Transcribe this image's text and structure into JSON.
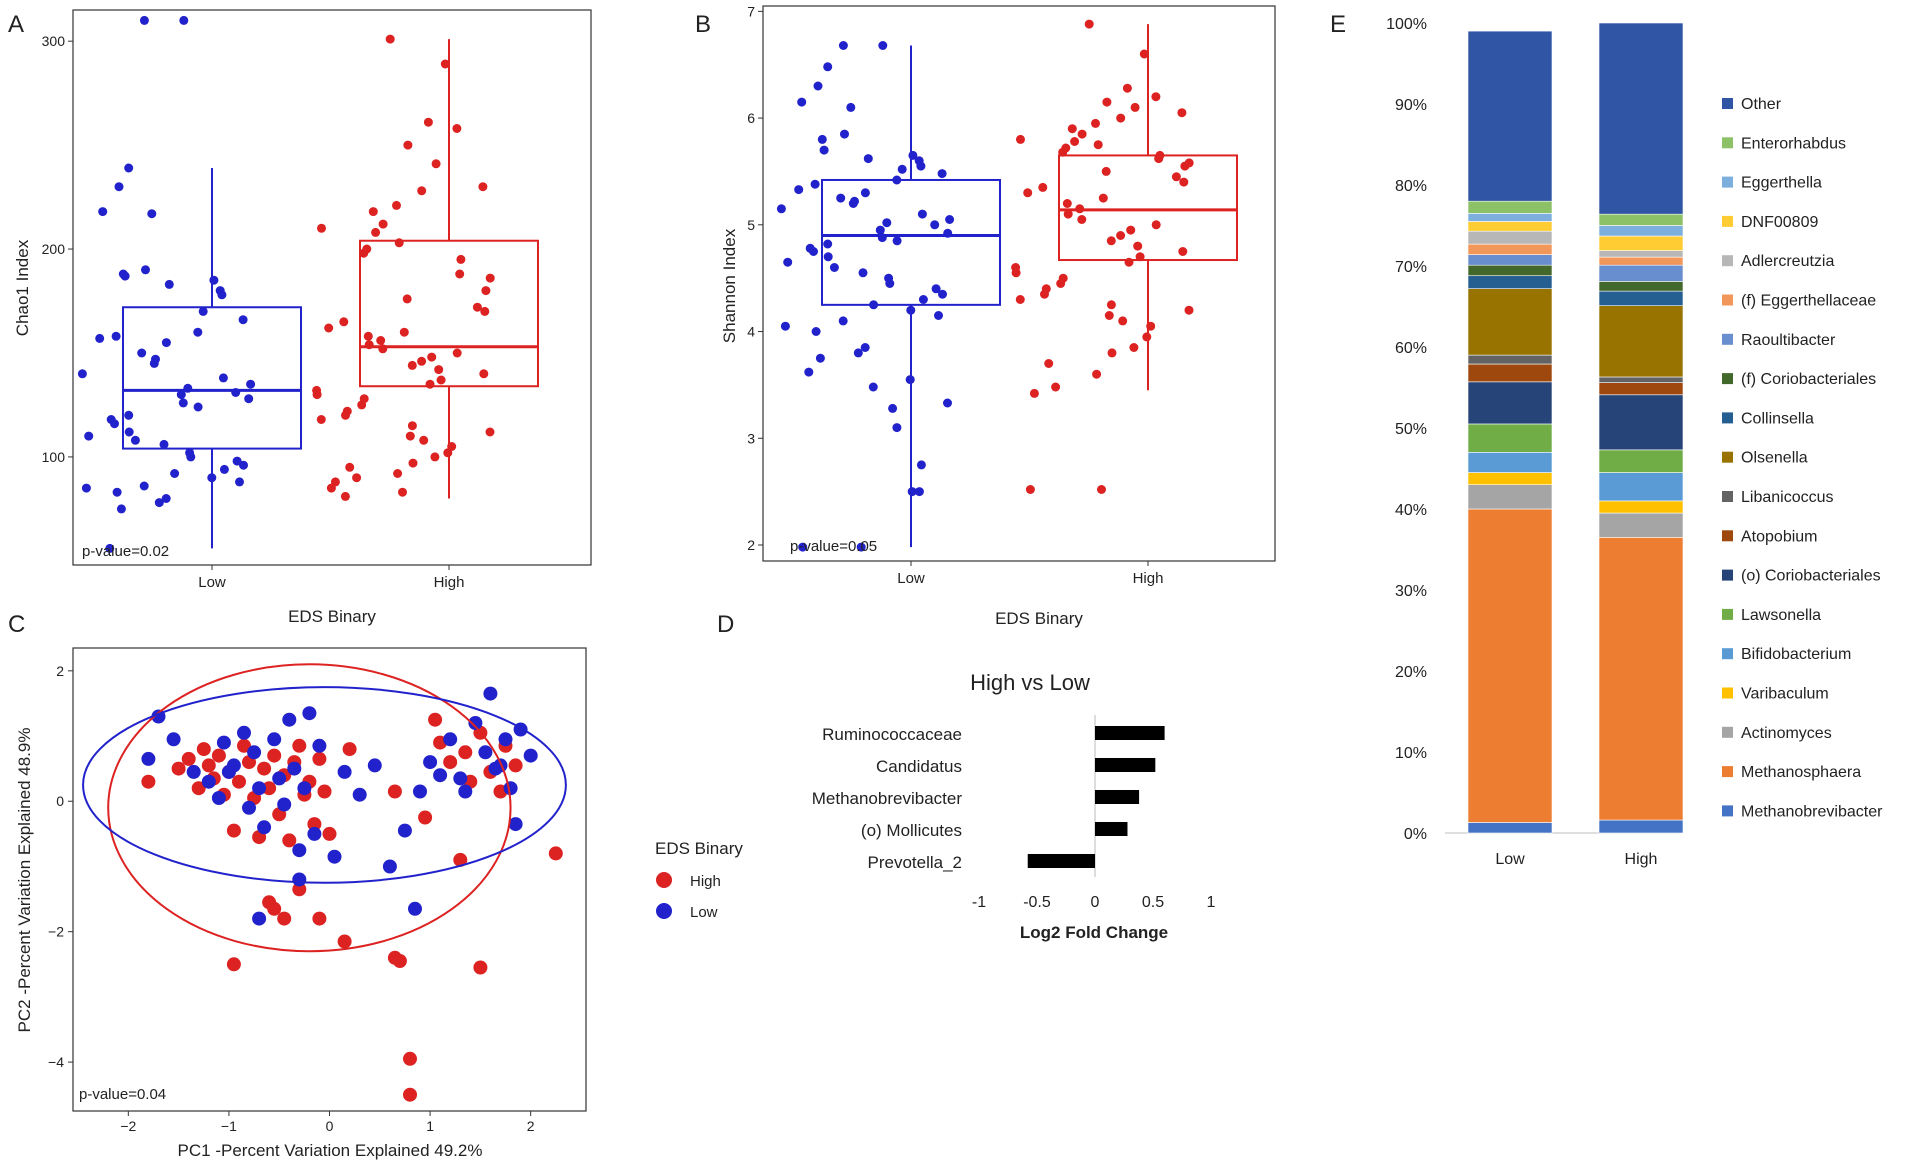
{
  "colors": {
    "low": "#2222cc",
    "high": "#dd2222",
    "frame": "#333333",
    "bar": "#000000"
  },
  "panels": {
    "A": "A",
    "B": "B",
    "C": "C",
    "D": "D",
    "E": "E"
  },
  "chart_data": [
    {
      "id": "A",
      "type": "scatter",
      "subtype": "boxplot_with_jitter",
      "title": "",
      "xlabel": "EDS Binary",
      "ylabel": "Chao1 Index",
      "categories": [
        "Low",
        "High"
      ],
      "ylim": [
        48,
        315
      ],
      "yticks": [
        100,
        200,
        300
      ],
      "annotation": "p-value=0.02",
      "boxes": [
        {
          "name": "Low",
          "q1": 104,
          "median": 132,
          "q3": 172,
          "whisker_low": 56,
          "whisker_high": 239
        },
        {
          "name": "High",
          "q1": 134,
          "median": 153,
          "q3": 204,
          "whisker_low": 80,
          "whisker_high": 301
        }
      ],
      "points": {
        "Low": [
          310,
          310,
          239,
          230,
          218,
          217,
          190,
          188,
          187,
          185,
          183,
          180,
          178,
          170,
          166,
          160,
          158,
          157,
          155,
          150,
          147,
          145,
          140,
          138,
          135,
          133,
          131,
          130,
          128,
          126,
          124,
          120,
          118,
          116,
          112,
          110,
          108,
          106,
          102,
          100,
          98,
          96,
          94,
          92,
          90,
          88,
          86,
          85,
          83,
          80,
          78,
          75,
          56
        ],
        "High": [
          301,
          289,
          261,
          258,
          250,
          241,
          230,
          228,
          221,
          218,
          212,
          210,
          208,
          203,
          200,
          198,
          195,
          188,
          186,
          180,
          176,
          172,
          170,
          165,
          162,
          160,
          158,
          156,
          154,
          152,
          150,
          148,
          146,
          144,
          142,
          140,
          137,
          135,
          132,
          130,
          128,
          125,
          122,
          120,
          118,
          115,
          112,
          110,
          108,
          105,
          102,
          100,
          97,
          95,
          92,
          90,
          88,
          85,
          83,
          81
        ]
      }
    },
    {
      "id": "B",
      "type": "scatter",
      "subtype": "boxplot_with_jitter",
      "title": "",
      "xlabel": "EDS Binary",
      "ylabel": "Shannon Index",
      "categories": [
        "Low",
        "High"
      ],
      "ylim": [
        1.85,
        7.05
      ],
      "yticks": [
        2,
        3,
        4,
        5,
        6,
        7
      ],
      "annotation": "p-value=0.05",
      "boxes": [
        {
          "name": "Low",
          "q1": 4.25,
          "median": 4.9,
          "q3": 5.42,
          "whisker_low": 1.98,
          "whisker_high": 6.68
        },
        {
          "name": "High",
          "q1": 4.67,
          "median": 5.14,
          "q3": 5.65,
          "whisker_low": 3.45,
          "whisker_high": 6.88
        }
      ],
      "points": {
        "Low": [
          6.68,
          6.68,
          6.48,
          6.3,
          6.15,
          6.1,
          5.85,
          5.8,
          5.7,
          5.65,
          5.62,
          5.6,
          5.55,
          5.52,
          5.48,
          5.42,
          5.38,
          5.33,
          5.3,
          5.25,
          5.22,
          5.2,
          5.15,
          5.1,
          5.05,
          5.02,
          5.0,
          4.95,
          4.92,
          4.88,
          4.85,
          4.82,
          4.78,
          4.75,
          4.7,
          4.65,
          4.6,
          4.55,
          4.5,
          4.45,
          4.4,
          4.35,
          4.3,
          4.25,
          4.2,
          4.15,
          4.1,
          4.05,
          4.0,
          3.85,
          3.8,
          3.75,
          3.62,
          3.55,
          3.48,
          3.33,
          3.28,
          3.1,
          2.75,
          2.5,
          2.5,
          1.98,
          1.98
        ],
        "High": [
          6.88,
          6.6,
          6.28,
          6.2,
          6.15,
          6.1,
          6.05,
          6.0,
          5.95,
          5.9,
          5.85,
          5.8,
          5.78,
          5.75,
          5.72,
          5.68,
          5.65,
          5.62,
          5.58,
          5.55,
          5.5,
          5.45,
          5.4,
          5.35,
          5.3,
          5.25,
          5.2,
          5.15,
          5.1,
          5.05,
          5.0,
          4.95,
          4.9,
          4.85,
          4.8,
          4.75,
          4.7,
          4.65,
          4.6,
          4.55,
          4.5,
          4.45,
          4.4,
          4.35,
          4.3,
          4.25,
          4.2,
          4.15,
          4.1,
          4.05,
          3.95,
          3.85,
          3.8,
          3.7,
          3.6,
          3.48,
          3.42,
          2.52,
          2.52
        ]
      }
    },
    {
      "id": "C",
      "type": "scatter",
      "title": "",
      "xlabel": "PC1 -Percent Variation Explained 49.2%",
      "ylabel": "PC2 -Percent Variation Explained 48.9%",
      "xlim": [
        -2.55,
        2.55
      ],
      "ylim": [
        -4.75,
        2.35
      ],
      "xticks": [
        -2,
        -1,
        0,
        1,
        2
      ],
      "yticks": [
        -4,
        -2,
        0,
        2
      ],
      "annotation": "p-value=0.04",
      "legend": {
        "title": "EDS Binary",
        "entries": [
          "High",
          "Low"
        ],
        "position": "right"
      },
      "ellipses": [
        {
          "group": "High",
          "cx": -0.2,
          "cy": -0.1,
          "rx": 2.0,
          "ry": 2.2
        },
        {
          "group": "Low",
          "cx": -0.05,
          "cy": 0.25,
          "rx": 2.4,
          "ry": 1.5
        }
      ],
      "series": [
        {
          "name": "High",
          "points": [
            [
              -1.5,
              0.5
            ],
            [
              -1.4,
              0.65
            ],
            [
              -1.3,
              0.2
            ],
            [
              -1.25,
              0.8
            ],
            [
              -1.2,
              0.55
            ],
            [
              -1.15,
              0.35
            ],
            [
              -1.1,
              0.7
            ],
            [
              -1.05,
              0.1
            ],
            [
              -1.0,
              0.45
            ],
            [
              -0.95,
              -0.45
            ],
            [
              -0.9,
              0.3
            ],
            [
              -0.85,
              0.85
            ],
            [
              -0.8,
              0.6
            ],
            [
              -0.75,
              0.05
            ],
            [
              -0.7,
              -0.55
            ],
            [
              -0.65,
              0.5
            ],
            [
              -0.6,
              0.2
            ],
            [
              -0.55,
              0.7
            ],
            [
              -0.5,
              -0.2
            ],
            [
              -0.45,
              0.4
            ],
            [
              -0.4,
              -0.6
            ],
            [
              -0.35,
              0.6
            ],
            [
              -0.3,
              0.85
            ],
            [
              -0.25,
              0.1
            ],
            [
              -0.2,
              0.3
            ],
            [
              -0.15,
              -0.35
            ],
            [
              -0.1,
              0.65
            ],
            [
              -0.05,
              0.15
            ],
            [
              0.0,
              -0.5
            ],
            [
              -0.6,
              -1.55
            ],
            [
              -0.55,
              -1.65
            ],
            [
              -0.45,
              -1.8
            ],
            [
              -0.3,
              -1.35
            ],
            [
              -0.1,
              -1.8
            ],
            [
              -0.95,
              -2.5
            ],
            [
              0.15,
              -2.15
            ],
            [
              0.65,
              -2.4
            ],
            [
              0.7,
              -2.45
            ],
            [
              1.5,
              -2.55
            ],
            [
              0.8,
              -3.95
            ],
            [
              0.8,
              -4.5
            ],
            [
              1.1,
              0.9
            ],
            [
              1.2,
              0.6
            ],
            [
              1.35,
              0.75
            ],
            [
              1.4,
              0.3
            ],
            [
              1.5,
              1.05
            ],
            [
              1.6,
              0.45
            ],
            [
              1.7,
              0.15
            ],
            [
              1.75,
              0.85
            ],
            [
              1.85,
              0.55
            ],
            [
              1.05,
              1.25
            ],
            [
              0.95,
              -0.25
            ],
            [
              1.3,
              -0.9
            ],
            [
              0.65,
              0.15
            ],
            [
              2.25,
              -0.8
            ],
            [
              0.2,
              0.8
            ],
            [
              -1.8,
              0.3
            ]
          ]
        },
        {
          "name": "Low",
          "points": [
            [
              -1.7,
              1.3
            ],
            [
              -1.55,
              0.95
            ],
            [
              -1.35,
              0.45
            ],
            [
              -1.2,
              0.3
            ],
            [
              -1.1,
              0.05
            ],
            [
              -1.05,
              0.9
            ],
            [
              -0.95,
              0.55
            ],
            [
              -0.85,
              1.05
            ],
            [
              -0.8,
              -0.1
            ],
            [
              -0.75,
              0.75
            ],
            [
              -0.7,
              0.2
            ],
            [
              -0.65,
              -0.4
            ],
            [
              -0.55,
              0.95
            ],
            [
              -0.5,
              0.35
            ],
            [
              -0.45,
              -0.05
            ],
            [
              -0.4,
              1.25
            ],
            [
              -0.35,
              0.5
            ],
            [
              -0.3,
              -0.75
            ],
            [
              -0.25,
              0.2
            ],
            [
              -0.2,
              1.35
            ],
            [
              -0.15,
              -0.5
            ],
            [
              -0.1,
              0.85
            ],
            [
              0.05,
              -0.85
            ],
            [
              0.15,
              0.45
            ],
            [
              0.3,
              0.1
            ],
            [
              0.45,
              0.55
            ],
            [
              0.6,
              -1.0
            ],
            [
              0.75,
              -0.45
            ],
            [
              0.85,
              -1.65
            ],
            [
              0.9,
              0.15
            ],
            [
              1.0,
              0.6
            ],
            [
              1.1,
              0.4
            ],
            [
              1.2,
              0.95
            ],
            [
              1.35,
              0.15
            ],
            [
              1.45,
              1.2
            ],
            [
              1.55,
              0.75
            ],
            [
              1.6,
              1.65
            ],
            [
              1.65,
              0.5
            ],
            [
              1.75,
              0.95
            ],
            [
              1.8,
              0.2
            ],
            [
              1.9,
              1.1
            ],
            [
              2.0,
              0.7
            ],
            [
              1.85,
              -0.35
            ],
            [
              -0.7,
              -1.8
            ],
            [
              -0.3,
              -1.2
            ],
            [
              -1.0,
              0.45
            ],
            [
              -1.8,
              0.65
            ],
            [
              1.3,
              0.35
            ],
            [
              1.7,
              0.55
            ]
          ]
        }
      ]
    },
    {
      "id": "D",
      "type": "bar",
      "orientation": "horizontal",
      "title": "High vs Low",
      "xlabel": "Log2 Fold Change",
      "ylabel": "",
      "categories": [
        "Ruminococcaceae",
        "Candidatus",
        "Methanobrevibacter",
        "(o) Mollicutes",
        "Prevotella_2"
      ],
      "values": [
        0.6,
        0.52,
        0.38,
        0.28,
        -0.58
      ],
      "xlim": [
        -1,
        1
      ],
      "xticks": [
        -1,
        -0.5,
        0,
        0.5,
        1
      ],
      "xticklabels": [
        "-1",
        "-0.5",
        "0",
        "0.5",
        "1"
      ]
    },
    {
      "id": "E",
      "type": "bar",
      "subtype": "stacked_percent",
      "title": "",
      "xlabel": "",
      "ylabel": "",
      "categories": [
        "Low",
        "High"
      ],
      "ylim": [
        0,
        100
      ],
      "yticks": [
        "0%",
        "10%",
        "20%",
        "30%",
        "40%",
        "50%",
        "60%",
        "70%",
        "80%",
        "90%",
        "100%"
      ],
      "legend_position": "right",
      "series": [
        {
          "name": "Methanobrevibacter",
          "color": "#4472c4",
          "values": [
            1.3,
            1.6
          ]
        },
        {
          "name": "Methanosphaera",
          "color": "#ed7d31",
          "values": [
            38.7,
            34.9
          ]
        },
        {
          "name": "Actinomyces",
          "color": "#a5a5a5",
          "values": [
            3.0,
            3.0
          ]
        },
        {
          "name": "Varibaculum",
          "color": "#ffc000",
          "values": [
            1.5,
            1.5
          ]
        },
        {
          "name": "Bifidobacterium",
          "color": "#5b9bd5",
          "values": [
            2.5,
            3.5
          ]
        },
        {
          "name": "Lawsonella",
          "color": "#70ad47",
          "values": [
            3.5,
            2.8
          ]
        },
        {
          "name": "(o) Coriobacteriales",
          "color": "#264478",
          "values": [
            5.2,
            6.8
          ]
        },
        {
          "name": "Atopobium",
          "color": "#9e480e",
          "values": [
            2.2,
            1.5
          ]
        },
        {
          "name": "Libanicoccus",
          "color": "#636363",
          "values": [
            1.1,
            0.7
          ]
        },
        {
          "name": "Olsenella",
          "color": "#997300",
          "values": [
            8.2,
            8.8
          ]
        },
        {
          "name": "Collinsella",
          "color": "#255e91",
          "values": [
            1.6,
            1.8
          ]
        },
        {
          "name": "(f) Coriobacteriales",
          "color": "#43682b",
          "values": [
            1.3,
            1.2
          ]
        },
        {
          "name": "Raoultibacter",
          "color": "#698ed0",
          "values": [
            1.3,
            2.0
          ]
        },
        {
          "name": "(f) Eggerthellaceae",
          "color": "#f1975a",
          "values": [
            1.3,
            1.0
          ]
        },
        {
          "name": "Adlercreutzia",
          "color": "#b7b7b7",
          "values": [
            1.6,
            0.8
          ]
        },
        {
          "name": "DNF00809",
          "color": "#ffcd33",
          "values": [
            1.2,
            1.8
          ]
        },
        {
          "name": "Eggerthella",
          "color": "#7cafdd",
          "values": [
            1.0,
            1.3
          ]
        },
        {
          "name": "Enterorhabdus",
          "color": "#8cc168",
          "values": [
            1.5,
            1.4
          ]
        },
        {
          "name": "Other",
          "color": "#2f55a4",
          "values": [
            21.0,
            23.6
          ]
        }
      ]
    }
  ]
}
